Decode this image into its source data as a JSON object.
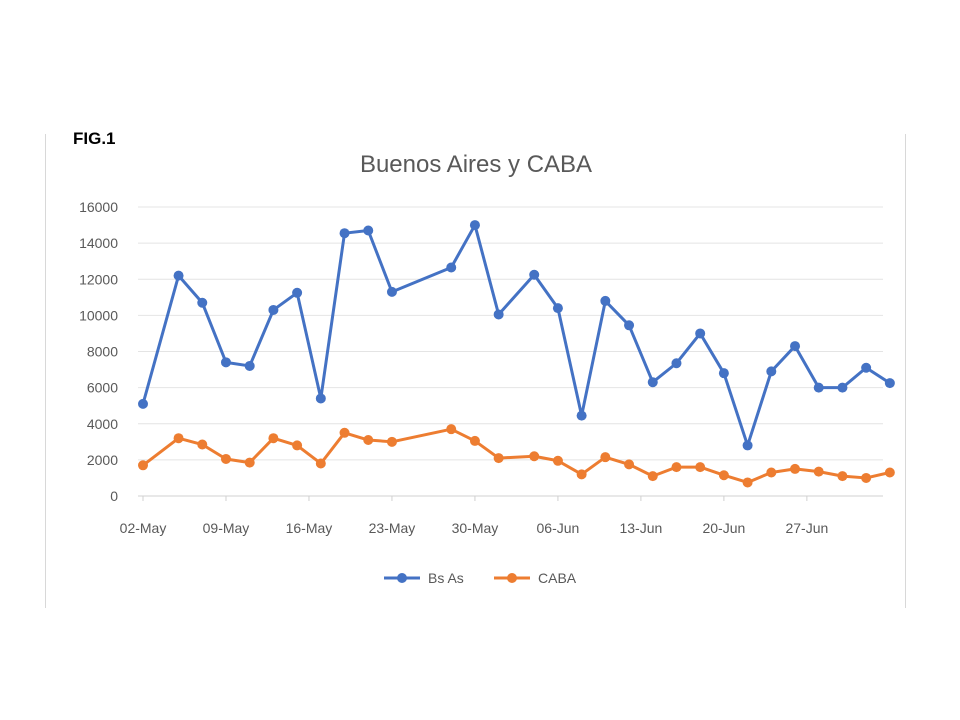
{
  "figure_label": "FIG.1",
  "chart_data": {
    "type": "line",
    "title": "Buenos Aires y CABA",
    "xlabel": "",
    "ylabel": "",
    "ylim": [
      0,
      16000
    ],
    "y_ticks": [
      0,
      2000,
      4000,
      6000,
      8000,
      10000,
      12000,
      14000,
      16000
    ],
    "x_ticks": [
      "02-May",
      "09-May",
      "16-May",
      "23-May",
      "30-May",
      "06-Jun",
      "13-Jun",
      "20-Jun",
      "27-Jun"
    ],
    "x_day_labels_offset_note": "",
    "grid": "horizontal",
    "legend_position": "bottom",
    "x": [
      "02-May",
      "05-May",
      "07-May",
      "09-May",
      "11-May",
      "13-May",
      "15-May",
      "17-May",
      "19-May",
      "21-May",
      "23-May",
      "28-May",
      "30-May",
      "01-Jun",
      "04-Jun",
      "06-Jun",
      "08-Jun",
      "10-Jun",
      "12-Jun",
      "14-Jun",
      "16-Jun",
      "18-Jun",
      "20-Jun",
      "22-Jun",
      "24-Jun",
      "26-Jun",
      "28-Jun",
      "30-Jun",
      "02-Jul",
      "04-Jul"
    ],
    "series": [
      {
        "name": "Bs As",
        "color": "#4472C4",
        "values": [
          5100,
          12200,
          10700,
          7400,
          7200,
          10300,
          11250,
          5400,
          14550,
          14700,
          11300,
          12650,
          15000,
          10050,
          12250,
          10400,
          4450,
          10800,
          9450,
          6300,
          7350,
          9000,
          6800,
          2800,
          6900,
          8300,
          6000,
          6000,
          7100,
          6250
        ]
      },
      {
        "name": "CABA",
        "color": "#ED7D31",
        "values": [
          1700,
          3200,
          2850,
          2050,
          1850,
          3200,
          2800,
          1800,
          3500,
          3100,
          3000,
          3700,
          3050,
          2100,
          2200,
          1950,
          1200,
          2150,
          1750,
          1100,
          1600,
          1600,
          1150,
          750,
          1300,
          1500,
          1350,
          1100,
          1000,
          1300
        ]
      }
    ]
  }
}
